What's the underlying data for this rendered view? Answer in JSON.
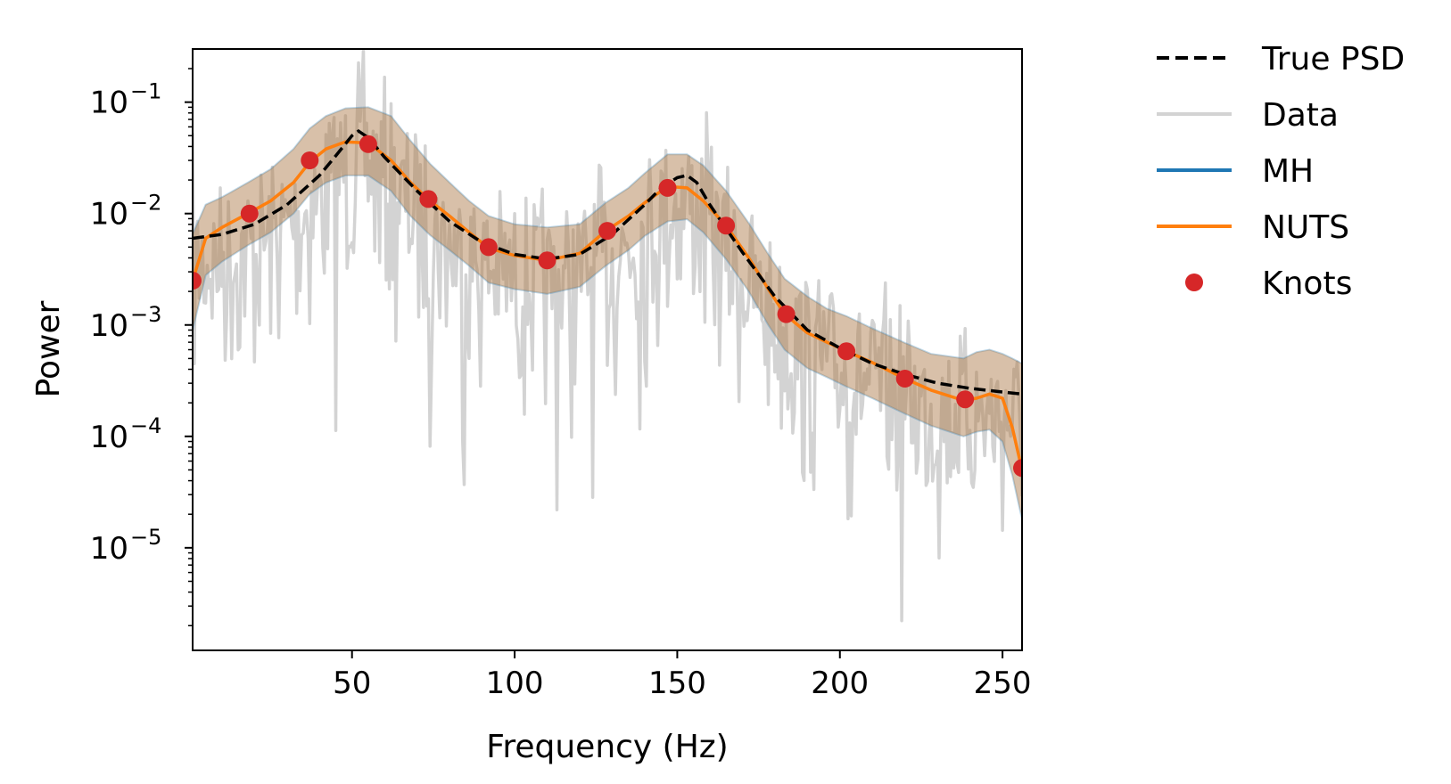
{
  "chart_data": {
    "type": "line",
    "xlabel": "Frequency (Hz)",
    "ylabel": "Power",
    "xlim": [
      1,
      256
    ],
    "ylim": [
      1.2e-06,
      0.3
    ],
    "yscale": "log",
    "grid": false,
    "legend_position": "outside-right",
    "x_ticks": [
      {
        "value": 50,
        "label": "50"
      },
      {
        "value": 100,
        "label": "100"
      },
      {
        "value": 150,
        "label": "150"
      },
      {
        "value": 200,
        "label": "200"
      },
      {
        "value": 250,
        "label": "250"
      }
    ],
    "y_ticks": [
      {
        "value": 0.1,
        "base": "10",
        "exp": "−1"
      },
      {
        "value": 0.01,
        "base": "10",
        "exp": "−2"
      },
      {
        "value": 0.001,
        "base": "10",
        "exp": "−3"
      },
      {
        "value": 0.0001,
        "base": "10",
        "exp": "−4"
      },
      {
        "value": 1e-05,
        "base": "10",
        "exp": "−5"
      }
    ],
    "legend": [
      {
        "label": "True PSD",
        "style": "dashed",
        "color": "#000000"
      },
      {
        "label": "Data",
        "style": "line",
        "color": "#d3d3d3"
      },
      {
        "label": "MH",
        "style": "line",
        "color": "#1f77b4"
      },
      {
        "label": "NUTS",
        "style": "line",
        "color": "#ff7f0e"
      },
      {
        "label": "Knots",
        "style": "marker",
        "color": "#d62728"
      }
    ],
    "true_psd": {
      "x": [
        1,
        10,
        20,
        30,
        40,
        45,
        50,
        52,
        55,
        60,
        70,
        80,
        90,
        100,
        110,
        120,
        130,
        140,
        145,
        150,
        153,
        156,
        160,
        170,
        180,
        190,
        200,
        210,
        220,
        230,
        240,
        250,
        256
      ],
      "y": [
        0.006,
        0.0065,
        0.008,
        0.012,
        0.022,
        0.033,
        0.05,
        0.055,
        0.048,
        0.032,
        0.016,
        0.0085,
        0.0055,
        0.0043,
        0.0039,
        0.0043,
        0.0065,
        0.012,
        0.017,
        0.021,
        0.022,
        0.019,
        0.012,
        0.0045,
        0.0018,
        0.0009,
        0.00062,
        0.00045,
        0.00036,
        0.0003,
        0.00027,
        0.00025,
        0.00024
      ]
    },
    "nuts": {
      "x": [
        1,
        5,
        10,
        18,
        25,
        32,
        37,
        42,
        48,
        55,
        62,
        68,
        74,
        80,
        86,
        92,
        100,
        110,
        120,
        128,
        135,
        140,
        147,
        153,
        158,
        165,
        172,
        178,
        183,
        190,
        196,
        202,
        210,
        220,
        228,
        238,
        242,
        246,
        250,
        253,
        256
      ],
      "y": [
        0.0025,
        0.006,
        0.0075,
        0.01,
        0.013,
        0.019,
        0.029,
        0.038,
        0.044,
        0.043,
        0.03,
        0.019,
        0.013,
        0.0095,
        0.0068,
        0.0049,
        0.0042,
        0.0038,
        0.0044,
        0.007,
        0.0095,
        0.0125,
        0.0175,
        0.017,
        0.013,
        0.0078,
        0.004,
        0.0021,
        0.00125,
        0.00085,
        0.0007,
        0.00058,
        0.00046,
        0.00033,
        0.00026,
        0.00021,
        0.00022,
        0.00024,
        0.00022,
        0.00012,
        5e-05
      ]
    },
    "band": {
      "x": [
        1,
        5,
        10,
        18,
        25,
        32,
        37,
        42,
        48,
        55,
        62,
        68,
        74,
        80,
        86,
        92,
        100,
        110,
        120,
        128,
        135,
        140,
        147,
        153,
        158,
        165,
        172,
        178,
        183,
        190,
        196,
        202,
        210,
        220,
        228,
        238,
        242,
        246,
        250,
        253,
        256
      ],
      "upper": [
        0.0065,
        0.012,
        0.014,
        0.019,
        0.025,
        0.038,
        0.058,
        0.075,
        0.088,
        0.09,
        0.075,
        0.045,
        0.028,
        0.019,
        0.013,
        0.0095,
        0.008,
        0.0075,
        0.008,
        0.0125,
        0.017,
        0.023,
        0.034,
        0.034,
        0.027,
        0.016,
        0.0082,
        0.0043,
        0.0026,
        0.0018,
        0.0014,
        0.0012,
        0.00093,
        0.00069,
        0.00055,
        0.0005,
        0.00057,
        0.0006,
        0.00055,
        0.0005,
        0.00045
      ],
      "lower": [
        0.0009,
        0.0028,
        0.0037,
        0.0052,
        0.0068,
        0.01,
        0.015,
        0.019,
        0.022,
        0.022,
        0.016,
        0.0095,
        0.0064,
        0.0047,
        0.0034,
        0.0024,
        0.0021,
        0.0019,
        0.0022,
        0.0034,
        0.0047,
        0.0063,
        0.0085,
        0.0089,
        0.0068,
        0.0039,
        0.002,
        0.001,
        0.0006,
        0.00041,
        0.00034,
        0.00028,
        0.00022,
        0.00016,
        0.000125,
        0.0001,
        0.00011,
        0.000115,
        9e-05,
        4.5e-05,
        1.8e-05
      ]
    },
    "knots": {
      "x": [
        1,
        18.5,
        37,
        55,
        73.5,
        92,
        110,
        128.5,
        147,
        165,
        183.5,
        202,
        220,
        238.5,
        256
      ],
      "y": [
        0.0025,
        0.01,
        0.03,
        0.042,
        0.0135,
        0.005,
        0.0038,
        0.007,
        0.017,
        0.0078,
        0.00125,
        0.00058,
        0.00033,
        0.000215,
        5.2e-05
      ]
    },
    "data_note_seed": 7
  }
}
